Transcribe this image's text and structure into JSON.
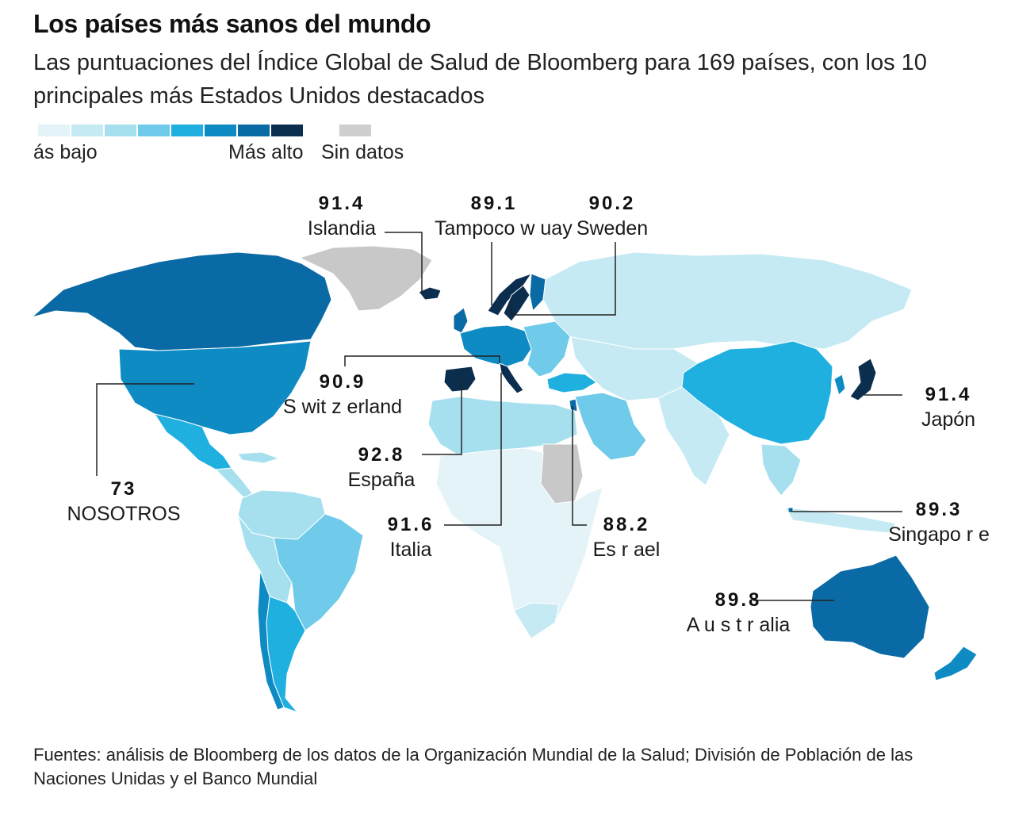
{
  "header": {
    "title": "Los países más sanos del mundo",
    "subtitle": "Las puntuaciones del Índice Global de Salud de Bloomberg para 169 países, con los 10 principales más Estados Unidos destacados"
  },
  "legend": {
    "low_label": "ás bajo",
    "high_label": "Más alto",
    "nodata_label": "Sin datos",
    "colors": [
      "#e3f3f8",
      "#c6eaf3",
      "#a6e0ef",
      "#6fcbe9",
      "#1fb0e0",
      "#0f8bc4",
      "#0a6aa5",
      "#0b2e4f"
    ],
    "nodata_color": "#cfcfcf"
  },
  "map": {
    "ocean_color": "#ffffff",
    "no_data_color": "#c8c8c8"
  },
  "callouts": {
    "iceland": {
      "score": "91.4",
      "name": "Islandia"
    },
    "norway": {
      "score": "89.1",
      "name": "Tampoco w uay"
    },
    "sweden": {
      "score": "90.2",
      "name": "Sweden"
    },
    "switzerland": {
      "score": "90.9",
      "name": "S wit z erland"
    },
    "spain": {
      "score": "92.8",
      "name": "España"
    },
    "italy": {
      "score": "91.6",
      "name": "Italia"
    },
    "israel": {
      "score": "88.2",
      "name": "Es r ael"
    },
    "japan": {
      "score": "91.4",
      "name": "Japón"
    },
    "singapore": {
      "score": "89.3",
      "name": "Singapo r e"
    },
    "australia": {
      "score": "89.8",
      "name": "A u s t r alia"
    },
    "us": {
      "score": "73",
      "name": "NOSOTROS"
    }
  },
  "footer": {
    "source": "Fuentes: análisis de Bloomberg de los datos de la Organización Mundial de la Salud; División de Población de las Naciones Unidas y el Banco Mundial"
  }
}
